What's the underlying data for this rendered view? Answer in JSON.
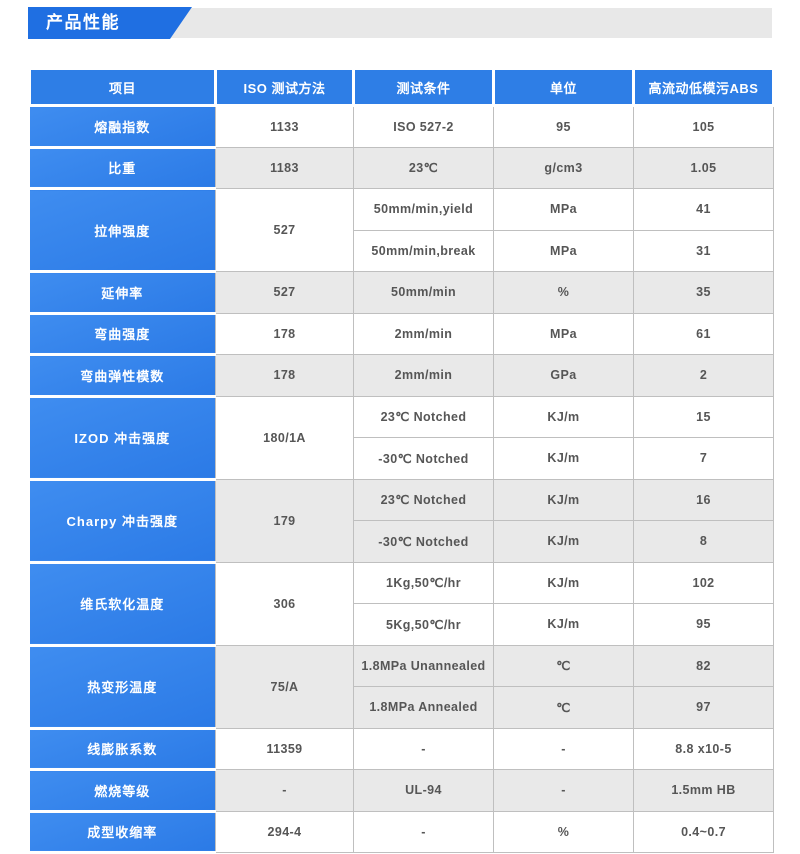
{
  "page": {
    "title": "产品性能"
  },
  "colors": {
    "banner_blue": "#1f6fe2",
    "banner_gray": "#e8e8e8",
    "header_blue": "#2e7ee6",
    "item_blue_light": "#3f8df0",
    "item_blue_dark": "#2b7ae6",
    "row_alt_gray": "#e9e9e9",
    "grid_line": "#bfbfbf",
    "data_text": "#565656"
  },
  "table": {
    "headers": [
      "项目",
      "ISO 测试方法",
      "测试条件",
      "单位",
      "高流动低模污ABS"
    ],
    "groups": [
      {
        "item": "熔融指数",
        "method": "1133",
        "shade": "white",
        "rows": [
          {
            "condition": "ISO 527-2",
            "unit": "95",
            "value": "105"
          }
        ]
      },
      {
        "item": "比重",
        "method": "1183",
        "shade": "gray",
        "rows": [
          {
            "condition": "23℃",
            "unit": "g/cm3",
            "value": "1.05"
          }
        ]
      },
      {
        "item": "拉伸强度",
        "method": "527",
        "shade": "white",
        "rows": [
          {
            "condition": "50mm/min,yield",
            "unit": "MPa",
            "value": "41"
          },
          {
            "condition": "50mm/min,break",
            "unit": "MPa",
            "value": "31"
          }
        ]
      },
      {
        "item": "延伸率",
        "method": "527",
        "shade": "gray",
        "rows": [
          {
            "condition": "50mm/min",
            "unit": "%",
            "value": "35"
          }
        ]
      },
      {
        "item": "弯曲强度",
        "method": "178",
        "shade": "white",
        "rows": [
          {
            "condition": "2mm/min",
            "unit": "MPa",
            "value": "61"
          }
        ]
      },
      {
        "item": "弯曲弹性模数",
        "method": "178",
        "shade": "gray",
        "rows": [
          {
            "condition": "2mm/min",
            "unit": "GPa",
            "value": "2"
          }
        ]
      },
      {
        "item": "IZOD 冲击强度",
        "method": "180/1A",
        "shade": "white",
        "rows": [
          {
            "condition": "23℃ Notched",
            "unit": "KJ/m",
            "value": "15"
          },
          {
            "condition": "-30℃ Notched",
            "unit": "KJ/m",
            "value": "7"
          }
        ]
      },
      {
        "item": "Charpy 冲击强度",
        "method": "179",
        "shade": "gray",
        "rows": [
          {
            "condition": "23℃ Notched",
            "unit": "KJ/m",
            "value": "16"
          },
          {
            "condition": "-30℃ Notched",
            "unit": "KJ/m",
            "value": "8"
          }
        ]
      },
      {
        "item": "维氏软化温度",
        "method": "306",
        "shade": "white",
        "rows": [
          {
            "condition": "1Kg,50℃/hr",
            "unit": "KJ/m",
            "value": "102"
          },
          {
            "condition": "5Kg,50℃/hr",
            "unit": "KJ/m",
            "value": "95"
          }
        ]
      },
      {
        "item": "热变形温度",
        "method": "75/A",
        "shade": "gray",
        "rows": [
          {
            "condition": "1.8MPa Unannealed",
            "unit": "℃",
            "value": "82"
          },
          {
            "condition": "1.8MPa Annealed",
            "unit": "℃",
            "value": "97"
          }
        ]
      },
      {
        "item": "线膨胀系数",
        "method": "11359",
        "shade": "white",
        "rows": [
          {
            "condition": "-",
            "unit": "-",
            "value": "8.8 x10-5"
          }
        ]
      },
      {
        "item": "燃烧等级",
        "method": "-",
        "shade": "gray",
        "rows": [
          {
            "condition": "UL-94",
            "unit": "-",
            "value": "1.5mm HB"
          }
        ]
      },
      {
        "item": "成型收缩率",
        "method": "294-4",
        "shade": "white",
        "rows": [
          {
            "condition": "-",
            "unit": "%",
            "value": "0.4~0.7"
          }
        ]
      }
    ]
  }
}
